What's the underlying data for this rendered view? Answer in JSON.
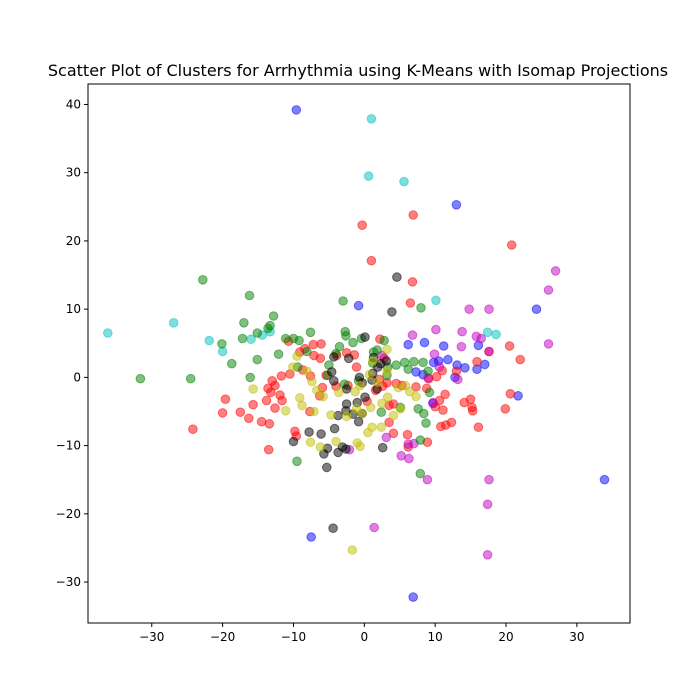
{
  "chart_data": {
    "type": "scatter",
    "title": "Scatter Plot of Clusters for Arrhythmia using K-Means with Isomap Projections",
    "xlabel": "",
    "ylabel": "",
    "xlim": [
      -39,
      37.5
    ],
    "ylim": [
      -36,
      43
    ],
    "grid": false,
    "legend": "none",
    "xticks": [
      -30,
      -20,
      -10,
      0,
      10,
      20,
      30
    ],
    "yticks": [
      -30,
      -20,
      -10,
      0,
      10,
      20,
      30,
      40
    ],
    "series": [
      {
        "color": "#0000ff",
        "points": [
          [
            -9.6,
            39.2
          ],
          [
            13,
            25.3
          ],
          [
            -0.8,
            10.5
          ],
          [
            24.3,
            10
          ],
          [
            6.2,
            4.8
          ],
          [
            8.5,
            5.1
          ],
          [
            11.2,
            4.6
          ],
          [
            16.1,
            4.7
          ],
          [
            9.8,
            2.2
          ],
          [
            10.5,
            2.4
          ],
          [
            11.8,
            2.6
          ],
          [
            13.1,
            1.8
          ],
          [
            14.2,
            1.4
          ],
          [
            15.9,
            1.2
          ],
          [
            17,
            1.9
          ],
          [
            7.3,
            0.8
          ],
          [
            8.3,
            0.4
          ],
          [
            12.8,
            0
          ],
          [
            21.7,
            -2.7
          ],
          [
            9.7,
            -3.8
          ],
          [
            33.9,
            -15
          ],
          [
            -7.5,
            -23.4
          ],
          [
            6.9,
            -32.2
          ]
        ]
      },
      {
        "color": "#00bfbf",
        "points": [
          [
            1,
            37.9
          ],
          [
            0.6,
            29.5
          ],
          [
            5.6,
            28.7
          ],
          [
            10.1,
            11.3
          ],
          [
            -36.2,
            6.5
          ],
          [
            -26.9,
            8
          ],
          [
            -21.9,
            5.4
          ],
          [
            -20,
            3.8
          ],
          [
            -16,
            5.6
          ],
          [
            -14.4,
            6.2
          ],
          [
            -13.3,
            6.7
          ],
          [
            17.4,
            6.6
          ],
          [
            18.6,
            6.3
          ]
        ]
      },
      {
        "color": "#ff0000",
        "points": [
          [
            -0.3,
            22.3
          ],
          [
            6.9,
            23.8
          ],
          [
            1,
            17.1
          ],
          [
            20.8,
            19.4
          ],
          [
            6.8,
            14
          ],
          [
            6.5,
            10.9
          ],
          [
            20.5,
            4.6
          ],
          [
            22,
            2.6
          ],
          [
            15.9,
            2.3
          ],
          [
            11,
            1
          ],
          [
            13,
            0.9
          ],
          [
            10.2,
            0.1
          ],
          [
            9.1,
            -0.2
          ],
          [
            7.3,
            -1.4
          ],
          [
            8.8,
            -1.6
          ],
          [
            4.5,
            -0.9
          ],
          [
            5.3,
            -1.2
          ],
          [
            3.2,
            -0.8
          ],
          [
            -7.6,
            0.2
          ],
          [
            -8.7,
            1.1
          ],
          [
            -10.5,
            0.5
          ],
          [
            -11.7,
            0.2
          ],
          [
            -13,
            -0.5
          ],
          [
            -13.6,
            -1.6
          ],
          [
            -12.6,
            -1.2
          ],
          [
            -13.2,
            -2.2
          ],
          [
            -11.9,
            -2.6
          ],
          [
            -11.6,
            -3.4
          ],
          [
            -13.8,
            -3.4
          ],
          [
            -15.7,
            -4
          ],
          [
            -17.5,
            -5.1
          ],
          [
            -20,
            -5.2
          ],
          [
            -16.3,
            -6
          ],
          [
            -14.5,
            -6.5
          ],
          [
            -13.4,
            -6.8
          ],
          [
            -12.6,
            -4.5
          ],
          [
            -19.6,
            -3.2
          ],
          [
            -24.2,
            -7.6
          ],
          [
            -9.8,
            -7.9
          ],
          [
            -9.6,
            -8.6
          ],
          [
            -13.5,
            -10.6
          ],
          [
            -7.7,
            -5
          ],
          [
            -6.3,
            -2.7
          ],
          [
            -5.9,
            -1.5
          ],
          [
            -4,
            -1.3
          ],
          [
            -2.3,
            -1.2
          ],
          [
            -1.1,
            1.5
          ],
          [
            -6.2,
            2.8
          ],
          [
            -7.1,
            3.2
          ],
          [
            -7.2,
            4.8
          ],
          [
            -6.1,
            4.9
          ],
          [
            -8.4,
            4.2
          ],
          [
            -9.1,
            3.7
          ],
          [
            -10.7,
            5.3
          ],
          [
            -3.9,
            3.2
          ],
          [
            -2.5,
            3.6
          ],
          [
            -1.4,
            3.3
          ],
          [
            2.8,
            2.8
          ],
          [
            2.2,
            5.6
          ],
          [
            -5.4,
            0.3
          ],
          [
            2.1,
            -0.3
          ],
          [
            2.6,
            -1.3
          ],
          [
            1.6,
            -1.9
          ],
          [
            4.1,
            -3.9
          ],
          [
            3.5,
            -4.1
          ],
          [
            0.4,
            -3.5
          ],
          [
            3.5,
            -6.6
          ],
          [
            4.1,
            -8.2
          ],
          [
            6.1,
            -8.4
          ],
          [
            6.2,
            -10.2
          ],
          [
            8.9,
            -9.5
          ],
          [
            10,
            -4.3
          ],
          [
            10.6,
            -3.4
          ],
          [
            11.4,
            -2.5
          ],
          [
            11.1,
            -4.8
          ],
          [
            12.3,
            -6.6
          ],
          [
            10.8,
            -7.2
          ],
          [
            11.5,
            -7
          ],
          [
            14.1,
            -3.7
          ],
          [
            15,
            -3.2
          ],
          [
            15.2,
            -4.4
          ],
          [
            15.3,
            -4.9
          ],
          [
            16.1,
            -7.3
          ],
          [
            19.9,
            -4.6
          ],
          [
            20.6,
            -2.4
          ],
          [
            17.6,
            3.8
          ]
        ]
      },
      {
        "color": "#bf00bf",
        "points": [
          [
            27,
            15.6
          ],
          [
            26,
            12.8
          ],
          [
            14.8,
            10
          ],
          [
            17.6,
            10
          ],
          [
            6.8,
            6.2
          ],
          [
            10.1,
            7
          ],
          [
            13.8,
            6.7
          ],
          [
            15.8,
            6
          ],
          [
            16.5,
            5.7
          ],
          [
            13.7,
            4.5
          ],
          [
            17.6,
            3.8
          ],
          [
            9.9,
            3.4
          ],
          [
            10.6,
            1.5
          ],
          [
            9,
            -0.1
          ],
          [
            13.2,
            -0.3
          ],
          [
            26,
            4.9
          ],
          [
            2.5,
            3.2
          ],
          [
            5.2,
            -11.5
          ],
          [
            6.3,
            -11.9
          ],
          [
            6.2,
            -9.8
          ],
          [
            7,
            -9.7
          ],
          [
            9.7,
            -3.7
          ],
          [
            3.1,
            -8.8
          ],
          [
            -2.1,
            -10.6
          ],
          [
            8.9,
            -15
          ],
          [
            17.6,
            -15
          ],
          [
            17.4,
            -18.6
          ],
          [
            1.4,
            -22
          ],
          [
            17.4,
            -26
          ]
        ]
      },
      {
        "color": "#008000",
        "points": [
          [
            -22.8,
            14.3
          ],
          [
            -16.2,
            12
          ],
          [
            -12.8,
            9
          ],
          [
            -17,
            8
          ],
          [
            -13.3,
            7.6
          ],
          [
            -13.6,
            7.2
          ],
          [
            -15.1,
            6.5
          ],
          [
            -17.2,
            5.7
          ],
          [
            -20.1,
            4.9
          ],
          [
            -18.7,
            2
          ],
          [
            -16.1,
            0
          ],
          [
            -24.5,
            -0.2
          ],
          [
            -31.6,
            -0.2
          ],
          [
            -15.1,
            2.6
          ],
          [
            -12.1,
            3.4
          ],
          [
            -11.1,
            5.7
          ],
          [
            -10,
            5.7
          ],
          [
            -9.2,
            5.4
          ],
          [
            -7.6,
            6.6
          ],
          [
            -8.1,
            3.8
          ],
          [
            -9.4,
            1.5
          ],
          [
            -3,
            11.2
          ],
          [
            -2.7,
            6.7
          ],
          [
            -2.6,
            6.1
          ],
          [
            -1.6,
            5.1
          ],
          [
            -0.4,
            5.7
          ],
          [
            1.3,
            3.7
          ],
          [
            1.8,
            4
          ],
          [
            2.8,
            5.4
          ],
          [
            3.3,
            1.5
          ],
          [
            4.5,
            1.8
          ],
          [
            5.7,
            2.2
          ],
          [
            6.2,
            1.2
          ],
          [
            7,
            2.3
          ],
          [
            8.3,
            2.2
          ],
          [
            8,
            10.2
          ],
          [
            9,
            0.9
          ],
          [
            9.2,
            -2.2
          ],
          [
            7.6,
            -4.6
          ],
          [
            8.4,
            -5.3
          ],
          [
            8.7,
            -6.7
          ],
          [
            7.9,
            -9.2
          ],
          [
            5.1,
            -4.4
          ],
          [
            2.4,
            -5.1
          ],
          [
            3.2,
            0.3
          ],
          [
            -0.8,
            -0.5
          ],
          [
            -2.8,
            -1
          ],
          [
            -3.5,
            4.5
          ],
          [
            -4,
            3.5
          ],
          [
            -5,
            1.8
          ],
          [
            -5.2,
            0.3
          ],
          [
            -9.5,
            -12.3
          ],
          [
            7.9,
            -14.1
          ],
          [
            1.2,
            2.1
          ]
        ]
      },
      {
        "color": "#000000",
        "points": [
          [
            4.6,
            14.7
          ],
          [
            3.9,
            9.6
          ],
          [
            0.1,
            5.9
          ],
          [
            -4.3,
            3
          ],
          [
            -2.2,
            2.8
          ],
          [
            1.3,
            2.9
          ],
          [
            3.1,
            2.4
          ],
          [
            2.3,
            2
          ],
          [
            1.9,
            1.5
          ],
          [
            1.2,
            0.6
          ],
          [
            -0.7,
            0
          ],
          [
            -4.6,
            0.8
          ],
          [
            -4.3,
            -0.5
          ],
          [
            -2.5,
            -1.7
          ],
          [
            -0.3,
            -0.8
          ],
          [
            1.1,
            -0.4
          ],
          [
            1.8,
            -1.7
          ],
          [
            0.1,
            -2.9
          ],
          [
            -1,
            -3.7
          ],
          [
            -2.5,
            -3.9
          ],
          [
            -2.6,
            -4.9
          ],
          [
            -3.7,
            -5.6
          ],
          [
            -1.6,
            -5.4
          ],
          [
            -0.3,
            -5.3
          ],
          [
            -0.8,
            -6.5
          ],
          [
            -4.2,
            -7.5
          ],
          [
            -6.1,
            -8.3
          ],
          [
            -7.8,
            -8
          ],
          [
            -10,
            -9.4
          ],
          [
            -5.2,
            -10.4
          ],
          [
            -5.7,
            -11.2
          ],
          [
            -3.1,
            -10.2
          ],
          [
            -2.6,
            -10.5
          ],
          [
            -3.7,
            -11
          ],
          [
            -5.3,
            -13.2
          ],
          [
            2.6,
            -10.3
          ],
          [
            -4.4,
            -22.1
          ]
        ]
      },
      {
        "color": "#bfbf00",
        "points": [
          [
            -10.1,
            1.5
          ],
          [
            -8.1,
            0.9
          ],
          [
            -9.5,
            3.1
          ],
          [
            -7.4,
            -0.6
          ],
          [
            -6.7,
            -1.9
          ],
          [
            -5.8,
            -2.8
          ],
          [
            -3.6,
            -2.2
          ],
          [
            -1.3,
            -2.1
          ],
          [
            -0.6,
            -1.2
          ],
          [
            0.7,
            0.4
          ],
          [
            1.9,
            -0.7
          ],
          [
            3.2,
            0.9
          ],
          [
            4.8,
            -1.5
          ],
          [
            5.8,
            -1.2
          ],
          [
            6.4,
            -2.1
          ],
          [
            7.3,
            -2.8
          ],
          [
            3.3,
            -2.9
          ],
          [
            2.5,
            -3.8
          ],
          [
            0.9,
            -4.4
          ],
          [
            -1.1,
            -4.6
          ],
          [
            -2.5,
            -5.7
          ],
          [
            -4.7,
            -5.5
          ],
          [
            -7.1,
            -5
          ],
          [
            -8.8,
            -4.1
          ],
          [
            -9.1,
            -3
          ],
          [
            -11.1,
            -4.9
          ],
          [
            -15.7,
            -1.7
          ],
          [
            -7.6,
            -9.5
          ],
          [
            -6.2,
            -10.2
          ],
          [
            -4,
            -9.4
          ],
          [
            -1,
            -9.6
          ],
          [
            -0.6,
            -10.1
          ],
          [
            0.5,
            -8.1
          ],
          [
            1.1,
            -7.3
          ],
          [
            2.4,
            -7.3
          ],
          [
            4.1,
            -5.6
          ],
          [
            5.1,
            -4.6
          ],
          [
            -1.7,
            -25.3
          ],
          [
            3.2,
            4.1
          ],
          [
            1.2,
            2.4
          ],
          [
            -0.3,
            -5.3
          ]
        ]
      }
    ]
  }
}
